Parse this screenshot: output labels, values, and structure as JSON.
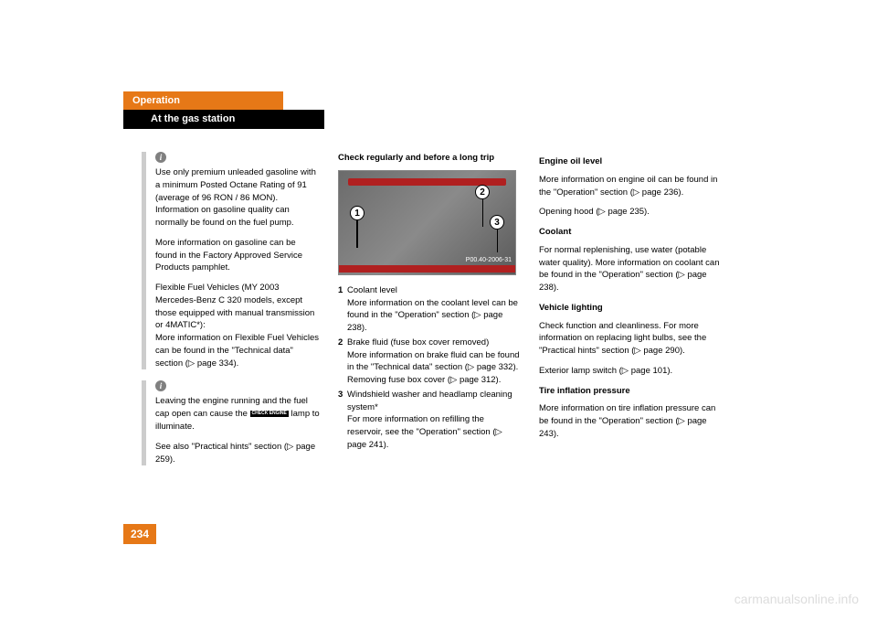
{
  "header": {
    "section": "Operation",
    "subsection": "At the gas station"
  },
  "col1": {
    "info1": {
      "p1": "Use only premium unleaded gasoline with a minimum Posted Octane Rating of 91 (average of 96 RON / 86 MON). Information on gasoline quality can normally be found on the fuel pump.",
      "p2": "More information on gasoline can be found in the Factory Approved Service Products pamphlet.",
      "p3": "Flexible Fuel Vehicles (MY 2003 Mercedes-Benz C 320 models, except those equipped with manual transmission or 4MATIC*):",
      "p3b": "More information on Flexible Fuel Vehicles can be found in the \"Technical data\" section (▷ page 334)."
    },
    "info2": {
      "p1a": "Leaving the engine running and the fuel cap open can cause the",
      "p1b": "lamp to illuminate.",
      "checkEngine": "CHECK ENGINE",
      "p2": "See also \"Practical hints\" section (▷ page 259)."
    }
  },
  "col2": {
    "heading": "Check regularly and before a long trip",
    "imgCode": "P00.40-2006-31",
    "item1num": "1",
    "item1": "Coolant level",
    "item1b": "More information on the coolant level can be found in the \"Operation\" section (▷ page 238).",
    "item2num": "2",
    "item2": "Brake fluid (fuse box cover removed)",
    "item2b": "More information on brake fluid can be found in the \"Technical data\" section (▷ page 332).",
    "item2c": "Removing fuse box cover (▷ page 312).",
    "item3num": "3",
    "item3": "Windshield washer and headlamp cleaning system*",
    "item3b": "For more information on refilling the reservoir, see the \"Operation\" section (▷ page 241)."
  },
  "col3": {
    "h1": "Engine oil level",
    "p1": "More information on engine oil can be found in the \"Operation\" section (▷ page 236).",
    "p2": "Opening hood (▷ page 235).",
    "h2": "Coolant",
    "p3": "For normal replenishing, use water (potable water quality). More information on coolant can be found in the \"Operation\" section (▷ page 238).",
    "h3": "Vehicle lighting",
    "p4": "Check function and cleanliness. For more information on replacing light bulbs, see the \"Practical hints\" section (▷ page 290).",
    "p5": "Exterior lamp switch (▷ page 101).",
    "h4": "Tire inflation pressure",
    "p6": "More information on tire inflation pressure can be found in the \"Operation\" section (▷ page 243)."
  },
  "pageNumber": "234",
  "watermark": "carmanualsonline.info"
}
